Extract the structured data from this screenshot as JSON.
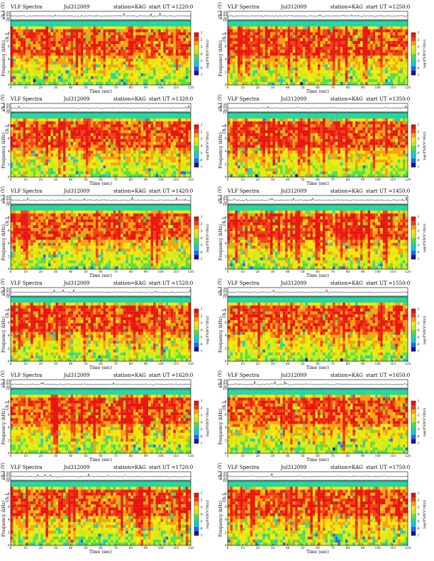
{
  "chart_data": [
    {
      "type": "heatmap",
      "title_left": "VLF Spectra",
      "date": "Jul312009",
      "station": "station=KAG",
      "start_ut": "start UT =1220:0",
      "xlabel": "Time (sec)",
      "ylabel": "Frequency (kHz)",
      "trace_label": "ch.1 (V)",
      "spec_label": "ch.1",
      "colorbar_label": "log(PSD(V²/Hz))",
      "x_ticks": [
        "0",
        "10",
        "20",
        "30",
        "40",
        "50",
        "60",
        "70",
        "80",
        "90",
        "100",
        "110",
        "120"
      ],
      "y_ticks": [
        "0",
        "2",
        "4",
        "6",
        "8",
        "10"
      ],
      "trace_ticks": [
        "0.30",
        "0.00",
        "-0.30"
      ],
      "colorbar_ticks": [
        "-1",
        "-2",
        "-3",
        "-4",
        "-5",
        "-6",
        "-7"
      ],
      "xlim": [
        0,
        120
      ],
      "ylim": [
        0,
        10
      ],
      "trace_ylim": [
        -0.3,
        0.3
      ],
      "clim": [
        -7,
        -1
      ],
      "seed": 11
    },
    {
      "type": "heatmap",
      "title_left": "VLF Spectra",
      "date": "Jul312009",
      "station": "station=KAG",
      "start_ut": "start UT =1250:0",
      "xlabel": "Time (sec)",
      "ylabel": "Frequency (kHz)",
      "trace_label": "ch.1 (V)",
      "spec_label": "ch.1",
      "colorbar_label": "log(PSD(V²/Hz))",
      "x_ticks": [
        "0",
        "10",
        "20",
        "30",
        "40",
        "50",
        "60",
        "70",
        "80",
        "90",
        "100",
        "110",
        "120"
      ],
      "y_ticks": [
        "0",
        "2",
        "4",
        "6",
        "8",
        "10"
      ],
      "trace_ticks": [
        "0.30",
        "0.00",
        "-0.30"
      ],
      "colorbar_ticks": [
        "-1",
        "-2",
        "-3",
        "-4",
        "-5",
        "-6",
        "-7"
      ],
      "xlim": [
        0,
        120
      ],
      "ylim": [
        0,
        10
      ],
      "trace_ylim": [
        -0.3,
        0.3
      ],
      "clim": [
        -7,
        -1
      ],
      "seed": 23
    },
    {
      "type": "heatmap",
      "title_left": "VLF Spectra",
      "date": "Jul312009",
      "station": "station=KAG",
      "start_ut": "start UT =1320:0",
      "xlabel": "Time (sec)",
      "ylabel": "Frequency (kHz)",
      "trace_label": "ch.1 (V)",
      "spec_label": "ch.1",
      "colorbar_label": "log(PSD(V²/Hz))",
      "x_ticks": [
        "0",
        "10",
        "20",
        "30",
        "40",
        "50",
        "60",
        "70",
        "80",
        "90",
        "100",
        "110",
        "120"
      ],
      "y_ticks": [
        "0",
        "2",
        "4",
        "6",
        "8",
        "10"
      ],
      "trace_ticks": [
        "0.30",
        "0.00",
        "-0.30"
      ],
      "colorbar_ticks": [
        "-1",
        "-2",
        "-3",
        "-4",
        "-5",
        "-6",
        "-7"
      ],
      "xlim": [
        0,
        120
      ],
      "ylim": [
        0,
        10
      ],
      "trace_ylim": [
        -0.3,
        0.3
      ],
      "clim": [
        -7,
        -1
      ],
      "seed": 37
    },
    {
      "type": "heatmap",
      "title_left": "VLF Spectra",
      "date": "Jul312009",
      "station": "station=KAG",
      "start_ut": "start UT =1350:0",
      "xlabel": "Time (sec)",
      "ylabel": "Frequency (kHz)",
      "trace_label": "ch.1 (V)",
      "spec_label": "ch.1",
      "colorbar_label": "log(PSD(V²/Hz))",
      "x_ticks": [
        "0",
        "10",
        "20",
        "30",
        "40",
        "50",
        "60",
        "70",
        "80",
        "90",
        "100",
        "110",
        "120"
      ],
      "y_ticks": [
        "0",
        "2",
        "4",
        "6",
        "8",
        "10"
      ],
      "trace_ticks": [
        "0.30",
        "0.00",
        "-0.30"
      ],
      "colorbar_ticks": [
        "-1",
        "-2",
        "-3",
        "-4",
        "-5",
        "-6",
        "-7"
      ],
      "xlim": [
        0,
        120
      ],
      "ylim": [
        0,
        10
      ],
      "trace_ylim": [
        -0.3,
        0.3
      ],
      "clim": [
        -7,
        -1
      ],
      "seed": 41
    },
    {
      "type": "heatmap",
      "title_left": "VLF Spectra",
      "date": "Jul312009",
      "station": "station=KAG",
      "start_ut": "start UT =1420:0",
      "xlabel": "Time (sec)",
      "ylabel": "Frequency (kHz)",
      "trace_label": "ch.1 (V)",
      "spec_label": "ch.1",
      "colorbar_label": "log(PSD(V²/Hz))",
      "x_ticks": [
        "0",
        "10",
        "20",
        "30",
        "40",
        "50",
        "60",
        "70",
        "80",
        "90",
        "100",
        "110",
        "120"
      ],
      "y_ticks": [
        "0",
        "2",
        "4",
        "6",
        "8",
        "10"
      ],
      "trace_ticks": [
        "0.30",
        "0.00",
        "-0.30"
      ],
      "colorbar_ticks": [
        "-1",
        "-2",
        "-3",
        "-4",
        "-5",
        "-6",
        "-7"
      ],
      "xlim": [
        0,
        120
      ],
      "ylim": [
        0,
        10
      ],
      "trace_ylim": [
        -0.3,
        0.3
      ],
      "clim": [
        -7,
        -1
      ],
      "seed": 53
    },
    {
      "type": "heatmap",
      "title_left": "VLF Spectra",
      "date": "Jul312009",
      "station": "station=KAG",
      "start_ut": "start UT =1450:0",
      "xlabel": "Time (sec)",
      "ylabel": "Frequency (kHz)",
      "trace_label": "ch.1 (V)",
      "spec_label": "ch.1",
      "colorbar_label": "log(PSD(V²/Hz))",
      "x_ticks": [
        "0",
        "10",
        "20",
        "30",
        "40",
        "50",
        "60",
        "70",
        "80",
        "90",
        "100",
        "110",
        "120"
      ],
      "y_ticks": [
        "0",
        "2",
        "4",
        "6",
        "8",
        "10"
      ],
      "trace_ticks": [
        "0.30",
        "0.00",
        "-0.30"
      ],
      "colorbar_ticks": [
        "-1",
        "-2",
        "-3",
        "-4",
        "-5",
        "-6",
        "-7"
      ],
      "xlim": [
        0,
        120
      ],
      "ylim": [
        0,
        10
      ],
      "trace_ylim": [
        -0.3,
        0.3
      ],
      "clim": [
        -7,
        -1
      ],
      "seed": 67
    },
    {
      "type": "heatmap",
      "title_left": "VLF Spectra",
      "date": "Jul312009",
      "station": "station=KAG",
      "start_ut": "start UT =1520:0",
      "xlabel": "Time (sec)",
      "ylabel": "Frequency (kHz)",
      "trace_label": "ch.1 (V)",
      "spec_label": "ch.1",
      "colorbar_label": "log(PSD(V²/Hz))",
      "x_ticks": [
        "0",
        "10",
        "20",
        "30",
        "40",
        "50",
        "60",
        "70",
        "80",
        "90",
        "100",
        "110",
        "120"
      ],
      "y_ticks": [
        "0",
        "2",
        "4",
        "6",
        "8",
        "10"
      ],
      "trace_ticks": [
        "0.30",
        "0.00",
        "-0.30"
      ],
      "colorbar_ticks": [
        "-1",
        "-2",
        "-3",
        "-4",
        "-5",
        "-6",
        "-7"
      ],
      "xlim": [
        0,
        120
      ],
      "ylim": [
        0,
        10
      ],
      "trace_ylim": [
        -0.3,
        0.3
      ],
      "clim": [
        -7,
        -1
      ],
      "seed": 71
    },
    {
      "type": "heatmap",
      "title_left": "VLF Spectra",
      "date": "Jul312009",
      "station": "station=KAG",
      "start_ut": "start UT =1550:0",
      "xlabel": "Time (sec)",
      "ylabel": "Frequency (kHz)",
      "trace_label": "ch.1 (V)",
      "spec_label": "ch.1",
      "colorbar_label": "log(PSD(V²/Hz))",
      "x_ticks": [
        "0",
        "10",
        "20",
        "30",
        "40",
        "50",
        "60",
        "70",
        "80",
        "90",
        "100",
        "110",
        "120"
      ],
      "y_ticks": [
        "0",
        "2",
        "4",
        "6",
        "8",
        "10"
      ],
      "trace_ticks": [
        "0.30",
        "0.00",
        "-0.30"
      ],
      "colorbar_ticks": [
        "-1",
        "-2",
        "-3",
        "-4",
        "-5",
        "-6",
        "-7"
      ],
      "xlim": [
        0,
        120
      ],
      "ylim": [
        0,
        10
      ],
      "trace_ylim": [
        -0.3,
        0.3
      ],
      "clim": [
        -7,
        -1
      ],
      "seed": 83
    },
    {
      "type": "heatmap",
      "title_left": "VLF Spectra",
      "date": "Jul312009",
      "station": "station=KAG",
      "start_ut": "start UT =1620:0",
      "xlabel": "Time (sec)",
      "ylabel": "Frequency (kHz)",
      "trace_label": "ch.1 (V)",
      "spec_label": "ch.1",
      "colorbar_label": "log(PSD(V²/Hz))",
      "x_ticks": [
        "0",
        "10",
        "20",
        "30",
        "40",
        "50",
        "60",
        "70",
        "80",
        "90",
        "100",
        "110",
        "120"
      ],
      "y_ticks": [
        "0",
        "2",
        "4",
        "6",
        "8",
        "10"
      ],
      "trace_ticks": [
        "0.30",
        "0.00",
        "-0.30"
      ],
      "colorbar_ticks": [
        "-1",
        "-2",
        "-3",
        "-4",
        "-5",
        "-6",
        "-7"
      ],
      "xlim": [
        0,
        120
      ],
      "ylim": [
        0,
        10
      ],
      "trace_ylim": [
        -0.3,
        0.3
      ],
      "clim": [
        -7,
        -1
      ],
      "seed": 97
    },
    {
      "type": "heatmap",
      "title_left": "VLF Spectra",
      "date": "Jul312009",
      "station": "station=KAG",
      "start_ut": "start UT =1650:0",
      "xlabel": "Time (sec)",
      "ylabel": "Frequency (kHz)",
      "trace_label": "ch.1 (V)",
      "spec_label": "ch.1",
      "colorbar_label": "log(PSD(V²/Hz))",
      "x_ticks": [
        "0",
        "10",
        "20",
        "30",
        "40",
        "50",
        "60",
        "70",
        "80",
        "90",
        "100",
        "110",
        "120"
      ],
      "y_ticks": [
        "0",
        "2",
        "4",
        "6",
        "8",
        "10"
      ],
      "trace_ticks": [
        "0.30",
        "0.00",
        "-0.30"
      ],
      "colorbar_ticks": [
        "-1",
        "-2",
        "-3",
        "-4",
        "-5",
        "-6",
        "-7"
      ],
      "xlim": [
        0,
        120
      ],
      "ylim": [
        0,
        10
      ],
      "trace_ylim": [
        -0.3,
        0.3
      ],
      "clim": [
        -7,
        -1
      ],
      "seed": 101
    },
    {
      "type": "heatmap",
      "title_left": "VLF Spectra",
      "date": "Jul312009",
      "station": "station=KAG",
      "start_ut": "start UT =1720:0",
      "xlabel": "Time (sec)",
      "ylabel": "Frequency (kHz)",
      "trace_label": "ch.1 (V)",
      "spec_label": "ch.1",
      "colorbar_label": "log(PSD(V²/Hz))",
      "x_ticks": [
        "0",
        "10",
        "20",
        "30",
        "40",
        "50",
        "60",
        "70",
        "80",
        "90",
        "100",
        "110",
        "120"
      ],
      "y_ticks": [
        "0",
        "2",
        "4",
        "6",
        "8",
        "10"
      ],
      "trace_ticks": [
        "0.30",
        "0.00",
        "-0.30"
      ],
      "colorbar_ticks": [
        "-1",
        "-2",
        "-3",
        "-4",
        "-5",
        "-6",
        "-7"
      ],
      "xlim": [
        0,
        120
      ],
      "ylim": [
        0,
        10
      ],
      "trace_ylim": [
        -0.3,
        0.3
      ],
      "clim": [
        -7,
        -1
      ],
      "seed": 113
    },
    {
      "type": "heatmap",
      "title_left": "VLF Spectra",
      "date": "Jul312009",
      "station": "station=KAG",
      "start_ut": "start UT =1750:0",
      "xlabel": "Time (sec)",
      "ylabel": "Frequency (kHz)",
      "trace_label": "ch.1 (V)",
      "spec_label": "ch.1",
      "colorbar_label": "log(PSD(V²/Hz))",
      "x_ticks": [
        "0",
        "10",
        "20",
        "30",
        "40",
        "50",
        "60",
        "70",
        "80",
        "90",
        "100",
        "110",
        "120"
      ],
      "y_ticks": [
        "0",
        "2",
        "4",
        "6",
        "8",
        "10"
      ],
      "trace_ticks": [
        "0.30",
        "0.00",
        "-0.30"
      ],
      "colorbar_ticks": [
        "-1",
        "-2",
        "-3",
        "-4",
        "-5",
        "-6",
        "-7"
      ],
      "xlim": [
        0,
        120
      ],
      "ylim": [
        0,
        10
      ],
      "trace_ylim": [
        -0.3,
        0.3
      ],
      "clim": [
        -7,
        -1
      ],
      "seed": 127
    }
  ],
  "colormap": [
    "#1a0fb0",
    "#1e6cf0",
    "#12c8e8",
    "#20d6a0",
    "#56e040",
    "#c8ec18",
    "#fae60a",
    "#f8a010",
    "#f04018",
    "#e8140e"
  ],
  "axis_color": "#000000"
}
